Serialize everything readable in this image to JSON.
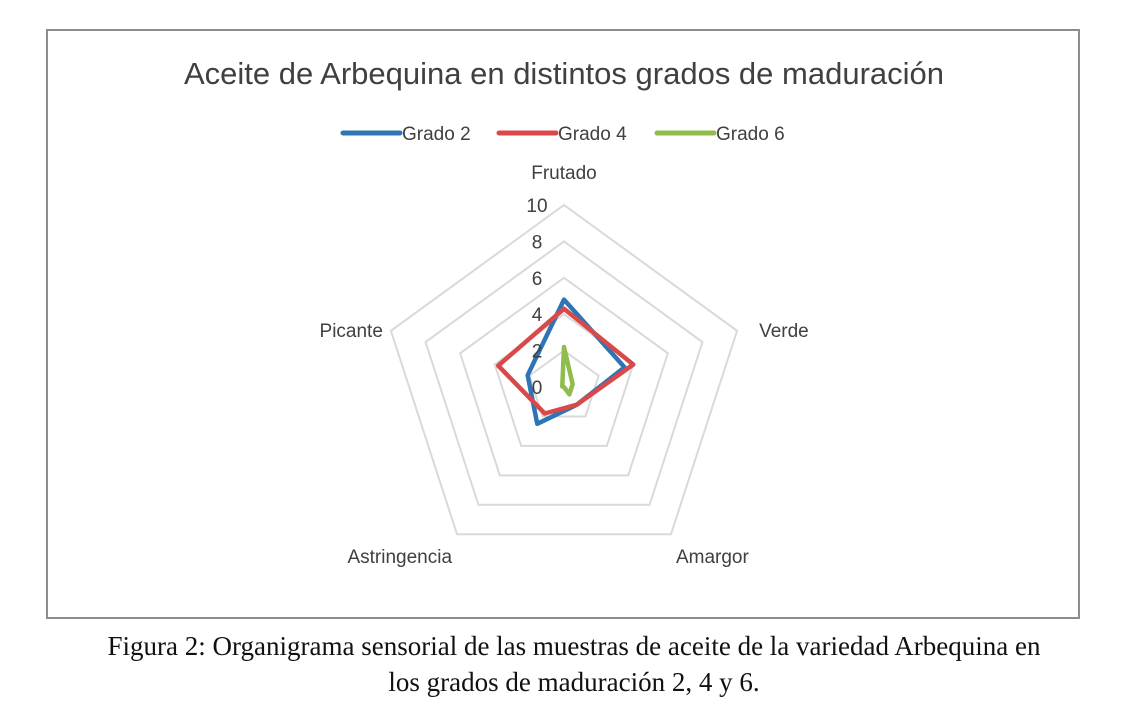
{
  "chart_data": {
    "type": "radar",
    "title": "Aceite de Arbequina en distintos grados de maduración",
    "axes": [
      "Frutado",
      "Verde",
      "Amargor",
      "Astringencia",
      "Picante"
    ],
    "r_ticks": [
      "0",
      "2",
      "4",
      "6",
      "8",
      "10"
    ],
    "r_range": [
      0,
      10
    ],
    "legend_position": "top",
    "grid": true,
    "series": [
      {
        "name": "Grado 2",
        "color": "#2e75b6",
        "values": [
          4.8,
          3.5,
          1.2,
          2.5,
          2.1
        ]
      },
      {
        "name": "Grado 4",
        "color": "#d9494a",
        "values": [
          4.3,
          4.0,
          1.2,
          1.8,
          3.8
        ]
      },
      {
        "name": "Grado 6",
        "color": "#8fbc4a",
        "values": [
          2.2,
          0.5,
          0.5,
          0.0,
          0.1
        ]
      }
    ],
    "colors": {
      "grid": "#d9d9d9",
      "text": "#404040",
      "frame": "#8c8c8c"
    }
  },
  "caption": {
    "line1": "Figura 2: Organigrama sensorial de las muestras de aceite de la variedad Arbequina en",
    "line2": "los grados de maduración 2, 4 y 6."
  }
}
